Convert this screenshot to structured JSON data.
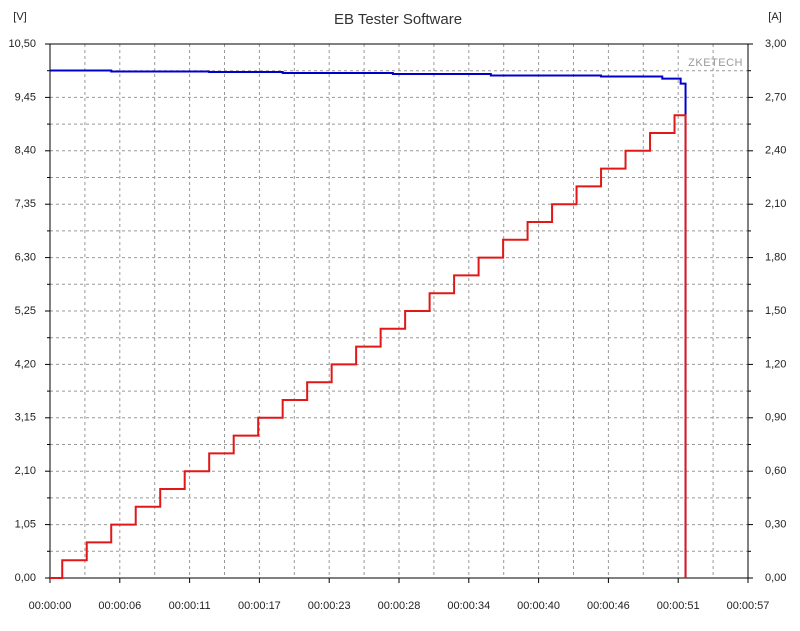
{
  "chart_data": {
    "type": "line",
    "title": "EB Tester Software",
    "ylabel": "[V]",
    "y2label": "[A]",
    "annotation": "ZKETECH",
    "step": true,
    "grid": true,
    "minor_grid": true,
    "xlim": [
      0,
      57
    ],
    "xticks": [
      {
        "value": 0,
        "label": "00:00:00"
      },
      {
        "value": 5.7,
        "label": "00:00:06"
      },
      {
        "value": 11.4,
        "label": "00:00:11"
      },
      {
        "value": 17.1,
        "label": "00:00:17"
      },
      {
        "value": 22.8,
        "label": "00:00:23"
      },
      {
        "value": 28.5,
        "label": "00:00:28"
      },
      {
        "value": 34.2,
        "label": "00:00:34"
      },
      {
        "value": 39.9,
        "label": "00:00:40"
      },
      {
        "value": 45.6,
        "label": "00:00:46"
      },
      {
        "value": 51.3,
        "label": "00:00:51"
      },
      {
        "value": 57,
        "label": "00:00:57"
      }
    ],
    "ylim": [
      0,
      10.5
    ],
    "yticks": [
      {
        "value": 0,
        "label": "0,00"
      },
      {
        "value": 1.05,
        "label": "1,05"
      },
      {
        "value": 2.1,
        "label": "2,10"
      },
      {
        "value": 3.15,
        "label": "3,15"
      },
      {
        "value": 4.2,
        "label": "4,20"
      },
      {
        "value": 5.25,
        "label": "5,25"
      },
      {
        "value": 6.3,
        "label": "6,30"
      },
      {
        "value": 7.35,
        "label": "7,35"
      },
      {
        "value": 8.4,
        "label": "8,40"
      },
      {
        "value": 9.45,
        "label": "9,45"
      },
      {
        "value": 10.5,
        "label": "10,50"
      }
    ],
    "y2lim": [
      0,
      3
    ],
    "y2ticks": [
      {
        "value": 0,
        "label": "0,00"
      },
      {
        "value": 0.3,
        "label": "0,30"
      },
      {
        "value": 0.6,
        "label": "0,60"
      },
      {
        "value": 0.9,
        "label": "0,90"
      },
      {
        "value": 1.2,
        "label": "1,20"
      },
      {
        "value": 1.5,
        "label": "1,50"
      },
      {
        "value": 1.8,
        "label": "1,80"
      },
      {
        "value": 2.1,
        "label": "2,10"
      },
      {
        "value": 2.4,
        "label": "2,40"
      },
      {
        "value": 2.7,
        "label": "2,70"
      },
      {
        "value": 3,
        "label": "3,00"
      }
    ],
    "series": [
      {
        "color": "#0000cc",
        "axis": "y",
        "x": [
          0,
          5,
          13,
          19,
          28,
          36,
          45,
          50,
          51.5,
          51.9
        ],
        "values": [
          9.98,
          9.96,
          9.95,
          9.93,
          9.91,
          9.88,
          9.86,
          9.82,
          9.72,
          0
        ]
      },
      {
        "color": "#e01818",
        "axis": "y2",
        "x": [
          0,
          1,
          3,
          5,
          7,
          9,
          11,
          13,
          15,
          17,
          19,
          21,
          23,
          25,
          27,
          29,
          31,
          33,
          35,
          37,
          39,
          41,
          43,
          45,
          47,
          49,
          51,
          51.9
        ],
        "values": [
          0,
          0.1,
          0.2,
          0.3,
          0.4,
          0.5,
          0.6,
          0.7,
          0.8,
          0.9,
          1.0,
          1.1,
          1.2,
          1.3,
          1.4,
          1.5,
          1.6,
          1.7,
          1.8,
          1.9,
          2.0,
          2.1,
          2.2,
          2.3,
          2.4,
          2.5,
          2.6,
          0
        ]
      }
    ]
  }
}
